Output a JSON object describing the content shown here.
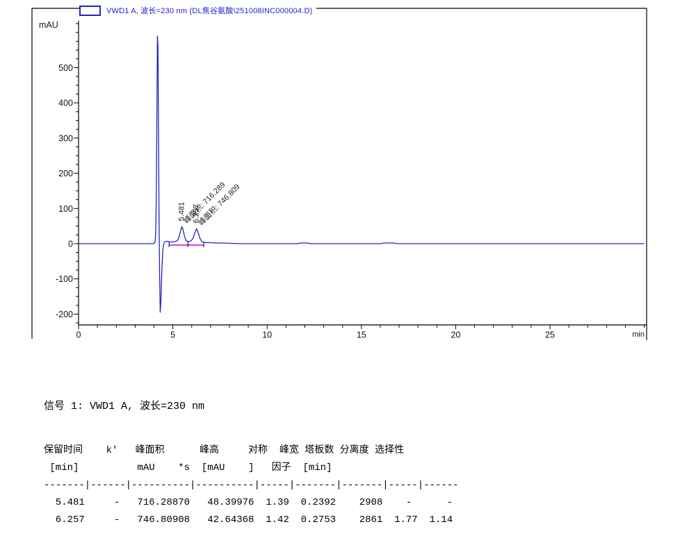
{
  "signal_line": "信号 1: VWD1 A, 波长=230 nm",
  "peak_table": {
    "columns": [
      {
        "title": "保留时间",
        "unit": "[min]"
      },
      {
        "title": "k'",
        "unit": ""
      },
      {
        "title": "峰面积",
        "unit": "mAU   *s"
      },
      {
        "title": "峰高",
        "unit": "[mAU    ]"
      },
      {
        "title": "对称",
        "unit": "因子"
      },
      {
        "title": "峰宽",
        "unit": "[min]"
      },
      {
        "title": "塔板数",
        "unit": ""
      },
      {
        "title": "分离度",
        "unit": ""
      },
      {
        "title": "选择性",
        "unit": ""
      }
    ],
    "rows": [
      [
        "5.481",
        "-",
        "716.28870",
        "48.39976",
        "1.39",
        "0.2392",
        "2908",
        "-",
        "-"
      ],
      [
        "6.257",
        "-",
        "746.80908",
        "42.64368",
        "1.42",
        "0.2753",
        "2861",
        "1.77",
        "1.14"
      ]
    ],
    "lines": [
      "保留时间    k'   峰面积      峰高     对称  峰宽 塔板数 分离度 选择性",
      " [min]          mAU    *s  [mAU    ]   因子  [min]",
      "-------|------|----------|----------|-----|-------|-------|-----|------",
      "  5.481     -   716.28870   48.39976  1.39  0.2392    2908    -      -",
      "  6.257     -   746.80908   42.64368  1.42  0.2753    2861  1.77  1.14"
    ]
  },
  "chart_data": {
    "type": "line",
    "kind": "hplc-chromatogram",
    "legend": "VWD1 A, 波长=230 nm (DL焦谷氨酸\\251008INC000004.D)",
    "xlabel": "min",
    "ylabel": "mAU",
    "xlim": [
      0,
      30.1
    ],
    "ylim": [
      -230,
      625
    ],
    "x_ticks": [
      0,
      5,
      10,
      15,
      20,
      25
    ],
    "x_minor_step": 1,
    "y_ticks": [
      -200,
      -100,
      0,
      100,
      200,
      300,
      400,
      500
    ],
    "y_minor_step": 25,
    "grid": false,
    "legend_position": "top-left",
    "trace_color": "#2121cc",
    "integration_color": "#cc00cc",
    "peaks": [
      {
        "rt": 5.481,
        "height_mAU": 48.39976,
        "area": 716.289,
        "rt_label": "5.481",
        "area_label": "峰面积: 716.289"
      },
      {
        "rt": 6.257,
        "height_mAU": 42.64368,
        "area": 746.809,
        "rt_label": "6.257",
        "area_label": "峰面积: 746.809"
      }
    ],
    "solvent_front": {
      "rt": 4.18,
      "apex_mAU": 590,
      "dip_mAU": -195
    },
    "integration": {
      "baseline_start_min": 4.8,
      "baseline_end_min": 6.64,
      "tick_times_min": [
        4.8,
        5.8,
        6.64
      ]
    },
    "trace_points": [
      [
        0,
        0
      ],
      [
        3.92,
        0
      ],
      [
        4.0,
        1
      ],
      [
        4.05,
        3
      ],
      [
        4.09,
        25
      ],
      [
        4.12,
        120
      ],
      [
        4.15,
        320
      ],
      [
        4.18,
        590
      ],
      [
        4.21,
        560
      ],
      [
        4.24,
        300
      ],
      [
        4.27,
        60
      ],
      [
        4.3,
        -90
      ],
      [
        4.33,
        -195
      ],
      [
        4.37,
        -160
      ],
      [
        4.42,
        -70
      ],
      [
        4.47,
        -18
      ],
      [
        4.52,
        0
      ],
      [
        4.58,
        6
      ],
      [
        4.68,
        7
      ],
      [
        4.78,
        5
      ],
      [
        4.9,
        5
      ],
      [
        5.02,
        5
      ],
      [
        5.12,
        6
      ],
      [
        5.22,
        8
      ],
      [
        5.3,
        14
      ],
      [
        5.37,
        27
      ],
      [
        5.44,
        42
      ],
      [
        5.481,
        48.4
      ],
      [
        5.53,
        42
      ],
      [
        5.6,
        25
      ],
      [
        5.68,
        11
      ],
      [
        5.76,
        7
      ],
      [
        5.84,
        6
      ],
      [
        5.92,
        7
      ],
      [
        6.0,
        10
      ],
      [
        6.08,
        17
      ],
      [
        6.16,
        30
      ],
      [
        6.257,
        42.64
      ],
      [
        6.35,
        30
      ],
      [
        6.44,
        15
      ],
      [
        6.53,
        7
      ],
      [
        6.62,
        4
      ],
      [
        6.75,
        3
      ],
      [
        6.95,
        3
      ],
      [
        7.2,
        2
      ],
      [
        7.6,
        2
      ],
      [
        8.1,
        1
      ],
      [
        8.6,
        0
      ],
      [
        9.5,
        0
      ],
      [
        10.5,
        0
      ],
      [
        11.6,
        0
      ],
      [
        11.8,
        2
      ],
      [
        12.1,
        2
      ],
      [
        12.3,
        0
      ],
      [
        13.5,
        0
      ],
      [
        16.0,
        0
      ],
      [
        16.2,
        2
      ],
      [
        16.7,
        2
      ],
      [
        16.9,
        0
      ],
      [
        18,
        0
      ],
      [
        20,
        0
      ],
      [
        23,
        0
      ],
      [
        26,
        0
      ],
      [
        30,
        0
      ]
    ]
  }
}
